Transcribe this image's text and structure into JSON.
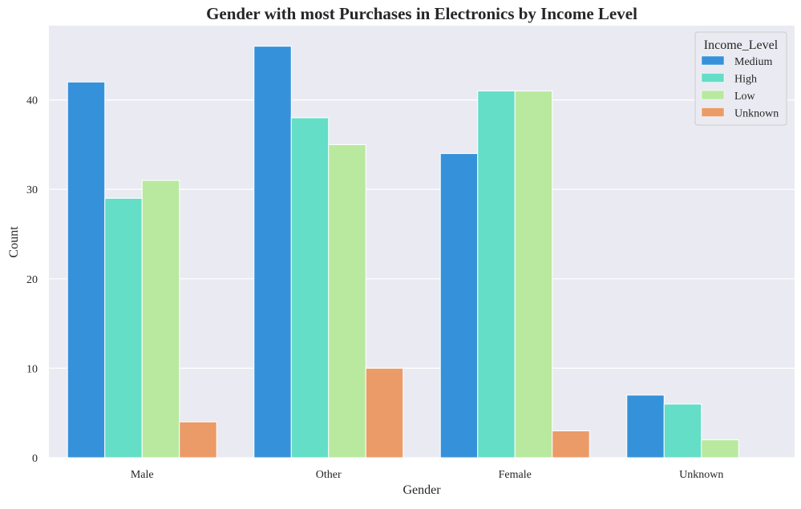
{
  "chart_data": {
    "type": "bar",
    "title": "Gender with most Purchases in Electronics by Income Level",
    "xlabel": "Gender",
    "ylabel": "Count",
    "categories": [
      "Male",
      "Other",
      "Female",
      "Unknown"
    ],
    "series": [
      {
        "name": "Medium",
        "color": "#3592da",
        "values": [
          42,
          46,
          34,
          7
        ]
      },
      {
        "name": "High",
        "color": "#64dec6",
        "values": [
          29,
          38,
          41,
          6
        ]
      },
      {
        "name": "Low",
        "color": "#b8e99f",
        "values": [
          31,
          35,
          41,
          2
        ]
      },
      {
        "name": "Unknown",
        "color": "#eb9b67",
        "values": [
          4,
          10,
          3,
          0
        ]
      }
    ],
    "ylim": [
      0,
      48.3
    ],
    "yticks": [
      0,
      10,
      20,
      30,
      40
    ],
    "legend": {
      "title": "Income_Level",
      "placement": "top-right"
    },
    "grid": true,
    "background": "#eaeaf2",
    "grid_color": "#ffffff"
  }
}
